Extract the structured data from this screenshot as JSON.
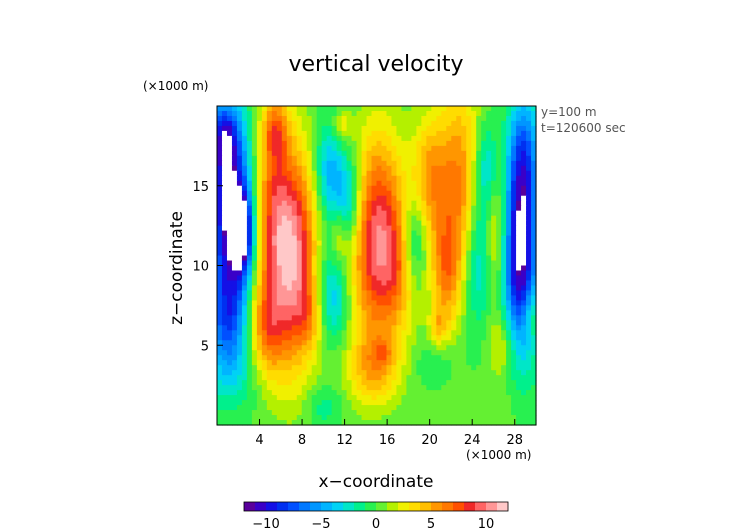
{
  "chart_data": {
    "type": "heatmap",
    "title": "vertical velocity",
    "xlabel": "x−coordinate",
    "ylabel": "z−coordinate",
    "x_unit": "(×1000 m)",
    "y_unit": "(×1000 m)",
    "annotations": [
      "y=100 m",
      "t=120600 sec"
    ],
    "xlim": [
      0,
      30
    ],
    "ylim": [
      0,
      20
    ],
    "x_ticks": [
      4,
      8,
      12,
      16,
      20,
      24,
      28
    ],
    "y_ticks": [
      5,
      10,
      15
    ],
    "x_tick_labels": [
      "4",
      "8",
      "12",
      "16",
      "20",
      "24",
      "28"
    ],
    "y_tick_labels": [
      "5",
      "10",
      "15"
    ],
    "colorbar": {
      "min": -12,
      "max": 12,
      "step": 1,
      "ticks": [
        -10,
        -5,
        0,
        5,
        10
      ],
      "tick_labels": [
        "−10",
        "−5",
        "0",
        "5",
        "10"
      ],
      "colors": [
        "#5a009c",
        "#3a00c8",
        "#1410e6",
        "#0030f0",
        "#0050ff",
        "#0078ff",
        "#0096ff",
        "#00b4ff",
        "#00d2f5",
        "#00e6c8",
        "#00f08c",
        "#28f050",
        "#64f032",
        "#b4f000",
        "#f0f000",
        "#ffdc00",
        "#ffbe00",
        "#ff9600",
        "#ff7800",
        "#ff5000",
        "#f02828",
        "#ff6464",
        "#ff9696",
        "#ffc8c8"
      ]
    },
    "features": [
      {
        "x": 1.2,
        "z": 13.5,
        "sx": 1.3,
        "sz": 4.0,
        "a": -12
      },
      {
        "x": 1.0,
        "z": 6.5,
        "sx": 1.3,
        "sz": 2.2,
        "a": -6
      },
      {
        "x": 0.6,
        "z": 18.0,
        "sx": 1.0,
        "sz": 1.5,
        "a": -6
      },
      {
        "x": 2.4,
        "z": 12.0,
        "sx": 0.7,
        "sz": 1.8,
        "a": -9
      },
      {
        "x": 4.6,
        "z": 6.0,
        "sx": 1.2,
        "sz": 2.2,
        "a": 5
      },
      {
        "x": 5.3,
        "z": 14.0,
        "sx": 1.2,
        "sz": 4.5,
        "a": 6
      },
      {
        "x": 6.8,
        "z": 9.5,
        "sx": 1.6,
        "sz": 4.0,
        "a": 6
      },
      {
        "x": 7.6,
        "z": 12.0,
        "sx": 1.3,
        "sz": 4.5,
        "a": 5
      },
      {
        "x": 5.5,
        "z": 18.5,
        "sx": 0.8,
        "sz": 1.3,
        "a": 4
      },
      {
        "x": 8.7,
        "z": 6.8,
        "sx": 1.0,
        "sz": 1.5,
        "a": 3
      },
      {
        "x": 10.5,
        "z": 16.0,
        "sx": 0.9,
        "sz": 2.0,
        "a": -4
      },
      {
        "x": 12.2,
        "z": 14.0,
        "sx": 1.0,
        "sz": 2.0,
        "a": -5
      },
      {
        "x": 10.8,
        "z": 8.0,
        "sx": 1.0,
        "sz": 2.0,
        "a": -4
      },
      {
        "x": 11.5,
        "z": 12.0,
        "sx": 0.6,
        "sz": 1.5,
        "a": 3
      },
      {
        "x": 11.8,
        "z": 18.7,
        "sx": 0.6,
        "sz": 0.7,
        "a": 3
      },
      {
        "x": 14.3,
        "z": 10.5,
        "sx": 1.4,
        "sz": 4.5,
        "a": 5
      },
      {
        "x": 15.6,
        "z": 13.5,
        "sx": 1.6,
        "sz": 4.0,
        "a": 5
      },
      {
        "x": 16.8,
        "z": 9.5,
        "sx": 1.4,
        "sz": 3.0,
        "a": 5
      },
      {
        "x": 18.5,
        "z": 11.5,
        "sx": 0.8,
        "sz": 2.0,
        "a": -4
      },
      {
        "x": 20.0,
        "z": 15.5,
        "sx": 1.2,
        "sz": 2.8,
        "a": 5
      },
      {
        "x": 21.5,
        "z": 9.5,
        "sx": 1.0,
        "sz": 2.5,
        "a": 5
      },
      {
        "x": 22.8,
        "z": 15.0,
        "sx": 1.4,
        "sz": 4.5,
        "a": 6
      },
      {
        "x": 20.8,
        "z": 6.2,
        "sx": 0.6,
        "sz": 0.8,
        "a": 3
      },
      {
        "x": 24.5,
        "z": 10.5,
        "sx": 1.0,
        "sz": 3.0,
        "a": -4
      },
      {
        "x": 25.4,
        "z": 16.0,
        "sx": 0.8,
        "sz": 2.0,
        "a": -4
      },
      {
        "x": 26.3,
        "z": 12.0,
        "sx": 0.8,
        "sz": 3.5,
        "a": 4
      },
      {
        "x": 27.0,
        "z": 5.0,
        "sx": 1.0,
        "sz": 1.5,
        "a": 3
      },
      {
        "x": 28.5,
        "z": 10.0,
        "sx": 1.2,
        "sz": 4.0,
        "a": -11
      },
      {
        "x": 28.8,
        "z": 16.5,
        "sx": 1.0,
        "sz": 3.0,
        "a": -7
      },
      {
        "x": 29.5,
        "z": 7.0,
        "sx": 0.6,
        "sz": 1.2,
        "a": 3
      },
      {
        "x": 14.8,
        "z": 3.5,
        "sx": 1.8,
        "sz": 1.6,
        "a": 4
      },
      {
        "x": 15.6,
        "z": 4.5,
        "sx": 0.6,
        "sz": 0.6,
        "a": 2
      },
      {
        "x": 1.8,
        "z": 3.0,
        "sx": 2.2,
        "sz": 1.6,
        "a": -2
      },
      {
        "x": 10.0,
        "z": 1.2,
        "sx": 1.2,
        "sz": 1.0,
        "a": -2
      },
      {
        "x": 7.0,
        "z": 2.5,
        "sx": 3.0,
        "sz": 2.0,
        "a": 1
      },
      {
        "x": 25.0,
        "z": 1.0,
        "sx": 3.0,
        "sz": 1.2,
        "a": 1
      },
      {
        "x": 20.5,
        "z": 3.8,
        "sx": 1.5,
        "sz": 1.0,
        "a": -1
      }
    ]
  }
}
